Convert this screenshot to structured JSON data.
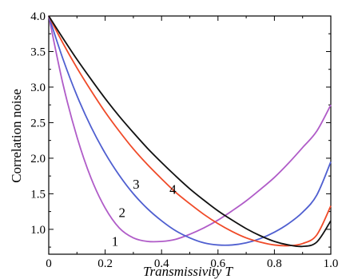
{
  "chart_data": {
    "type": "line",
    "xlabel": "Transmissivity T",
    "ylabel": "Correlation noise",
    "xlim": [
      0,
      1.0
    ],
    "ylim": [
      0.65,
      4.0
    ],
    "x_ticks": [
      "0",
      "0.2",
      "0.4",
      "0.6",
      "0.8",
      "1.0"
    ],
    "y_ticks": [
      "1.0",
      "1.5",
      "2.0",
      "2.5",
      "3.0",
      "3.5",
      "4.0"
    ],
    "grid": false,
    "series": [
      {
        "name": "1",
        "color": "#b05cc8",
        "x": [
          0.0,
          0.05,
          0.1,
          0.15,
          0.2,
          0.25,
          0.3,
          0.35,
          0.4,
          0.45,
          0.5,
          0.55,
          0.6,
          0.65,
          0.7,
          0.75,
          0.8,
          0.85,
          0.9,
          0.95,
          1.0
        ],
        "y": [
          4.0,
          3.05,
          2.3,
          1.72,
          1.3,
          1.02,
          0.88,
          0.83,
          0.83,
          0.86,
          0.93,
          1.02,
          1.13,
          1.26,
          1.4,
          1.56,
          1.73,
          1.93,
          2.15,
          2.38,
          2.75
        ]
      },
      {
        "name": "2",
        "color": "#4f5fd0",
        "x": [
          0.0,
          0.05,
          0.1,
          0.15,
          0.2,
          0.25,
          0.3,
          0.35,
          0.4,
          0.45,
          0.5,
          0.55,
          0.6,
          0.65,
          0.7,
          0.75,
          0.8,
          0.85,
          0.9,
          0.95,
          1.0
        ],
        "y": [
          4.0,
          3.4,
          2.88,
          2.44,
          2.07,
          1.76,
          1.5,
          1.29,
          1.12,
          0.98,
          0.88,
          0.81,
          0.78,
          0.78,
          0.81,
          0.87,
          0.96,
          1.08,
          1.24,
          1.48,
          1.95
        ]
      },
      {
        "name": "3",
        "color": "#f04a28",
        "x": [
          0.0,
          0.05,
          0.1,
          0.15,
          0.2,
          0.25,
          0.3,
          0.35,
          0.4,
          0.45,
          0.5,
          0.55,
          0.6,
          0.65,
          0.7,
          0.75,
          0.8,
          0.85,
          0.9,
          0.95,
          1.0
        ],
        "y": [
          4.0,
          3.62,
          3.27,
          2.95,
          2.65,
          2.38,
          2.13,
          1.91,
          1.71,
          1.52,
          1.36,
          1.21,
          1.08,
          0.97,
          0.88,
          0.82,
          0.78,
          0.77,
          0.8,
          0.92,
          1.33
        ]
      },
      {
        "name": "4",
        "color": "#111111",
        "x": [
          0.0,
          0.05,
          0.1,
          0.15,
          0.2,
          0.25,
          0.3,
          0.35,
          0.4,
          0.45,
          0.5,
          0.55,
          0.6,
          0.65,
          0.7,
          0.75,
          0.8,
          0.85,
          0.9,
          0.95,
          1.0
        ],
        "y": [
          4.0,
          3.69,
          3.39,
          3.11,
          2.84,
          2.59,
          2.36,
          2.14,
          1.94,
          1.75,
          1.57,
          1.41,
          1.26,
          1.13,
          1.01,
          0.91,
          0.83,
          0.78,
          0.76,
          0.82,
          1.12
        ]
      }
    ],
    "annotations": [
      {
        "text": "1",
        "x": 0.235,
        "y": 0.77
      },
      {
        "text": "2",
        "x": 0.26,
        "y": 1.17
      },
      {
        "text": "3",
        "x": 0.31,
        "y": 1.57
      },
      {
        "text": "4",
        "x": 0.44,
        "y": 1.5
      }
    ]
  }
}
